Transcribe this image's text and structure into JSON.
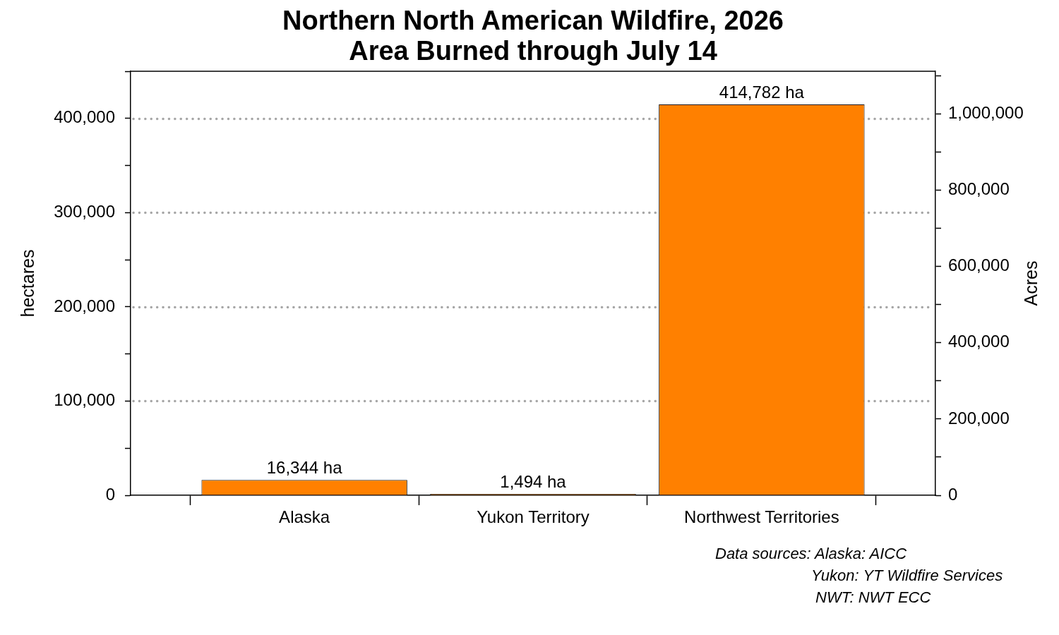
{
  "chart_data": {
    "type": "bar",
    "title": "Northern North American Wildfire, 2026",
    "subtitle": "Area Burned through July 14",
    "ylabel": "hectares",
    "y2label": "Acres",
    "categories": [
      "Alaska",
      "Yukon Territory",
      "Northwest Territories"
    ],
    "values": [
      16344,
      1494,
      414782
    ],
    "value_labels": [
      "16,344 ha",
      "1,494 ha",
      "414,782 ha"
    ],
    "color": "#ff8000",
    "ylim": [
      0,
      450000
    ],
    "yticks": [
      0,
      {
        "value": 50000,
        "label": null
      },
      {
        "value": 100000,
        "label": "100,000"
      },
      {
        "value": 150000,
        "label": null
      },
      {
        "value": 200000,
        "label": "200,000"
      },
      {
        "value": 250000,
        "label": null
      },
      {
        "value": 300000,
        "label": "300,000"
      },
      {
        "value": 350000,
        "label": null
      },
      {
        "value": 400000,
        "label": "400,000"
      },
      {
        "value": 450000,
        "label": null
      }
    ],
    "y2lim": [
      0,
      1112000
    ],
    "y2ticks": [
      0,
      {
        "value": 100000,
        "label": null
      },
      {
        "value": 200000,
        "label": "200,000"
      },
      {
        "value": 300000,
        "label": null
      },
      {
        "value": 400000,
        "label": "400,000"
      },
      {
        "value": 500000,
        "label": null
      },
      {
        "value": 600000,
        "label": "600,000"
      },
      {
        "value": 700000,
        "label": null
      },
      {
        "value": 800000,
        "label": "800,000"
      },
      {
        "value": 900000,
        "label": null
      },
      {
        "value": 1000000,
        "label": "1,000,000"
      },
      {
        "value": 1100000,
        "label": null
      }
    ],
    "grid": "y",
    "annotations": [
      "Data sources: Alaska: AICC",
      "Yukon: YT Wildfire Services",
      "NWT: NWT ECC"
    ]
  }
}
